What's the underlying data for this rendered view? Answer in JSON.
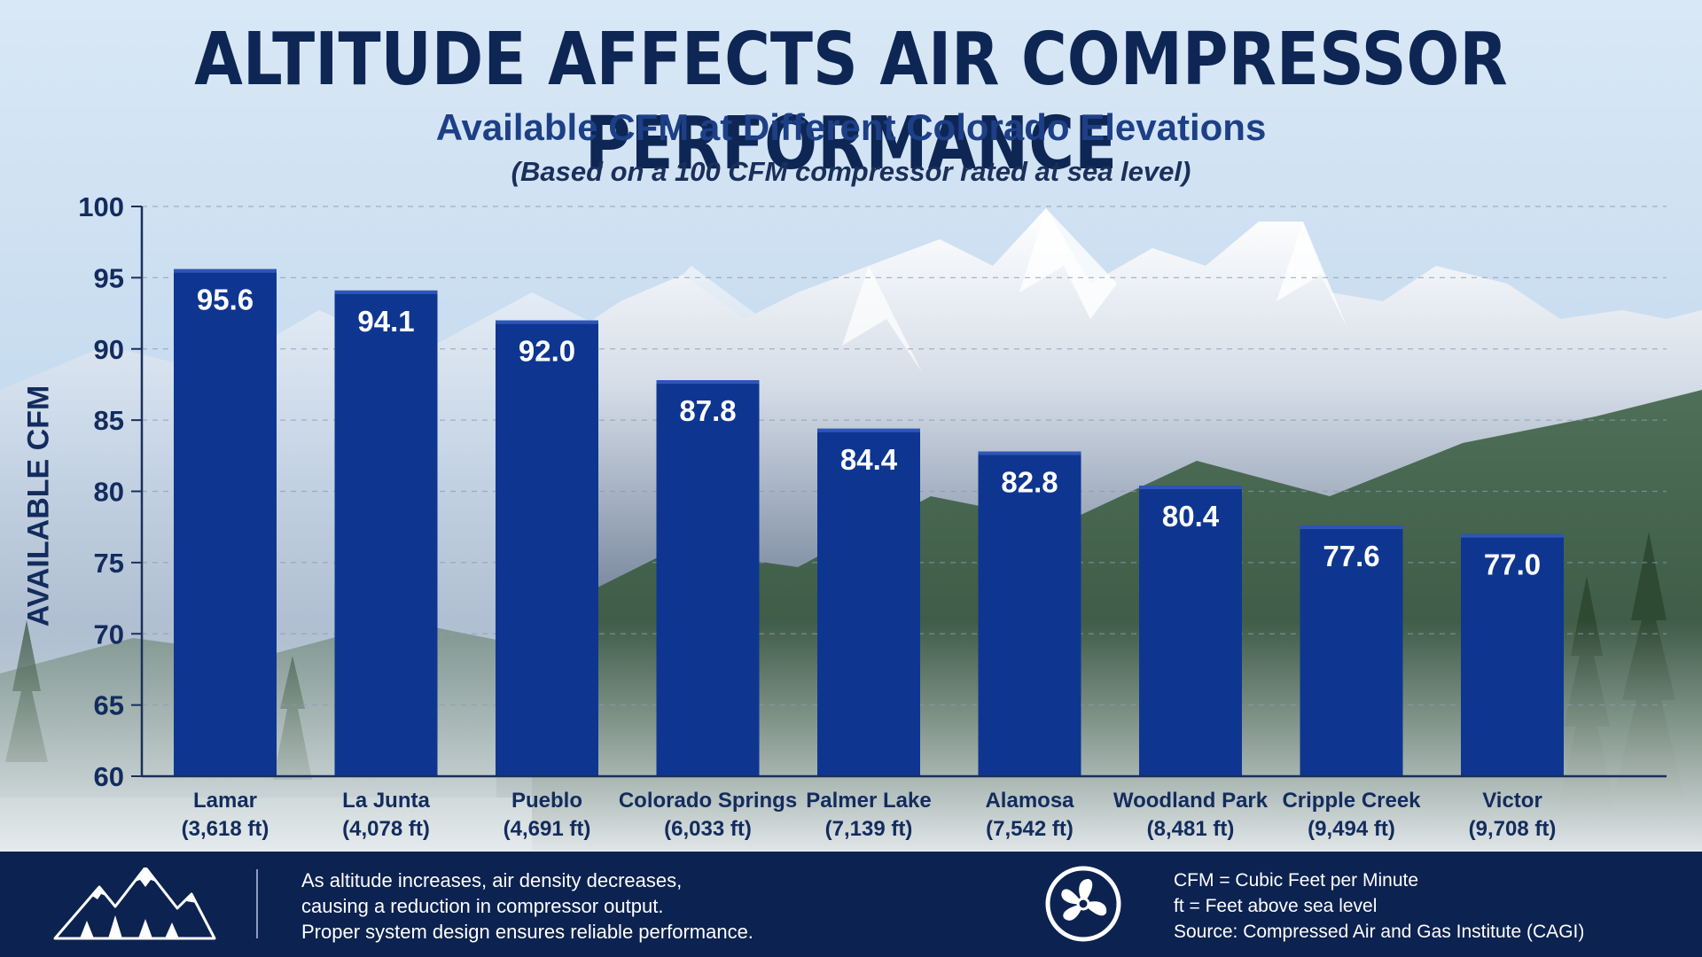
{
  "title": "ALTITUDE AFFECTS AIR COMPRESSOR PERFORMANCE",
  "subtitle": "Available CFM at Different Colorado Elevations",
  "note": "(Based on a 100 CFM compressor rated at sea level)",
  "chart_data": {
    "type": "bar",
    "ylabel": "AVAILABLE CFM",
    "xlabel": "",
    "ylim": [
      60,
      100
    ],
    "yticks": [
      60,
      65,
      70,
      75,
      80,
      85,
      90,
      95,
      100
    ],
    "grid": true,
    "categories": [
      {
        "city": "Lamar",
        "elevation": "(3,618 ft)"
      },
      {
        "city": "La Junta",
        "elevation": "(4,078 ft)"
      },
      {
        "city": "Pueblo",
        "elevation": "(4,691 ft)"
      },
      {
        "city": "Colorado Springs",
        "elevation": "(6,033 ft)"
      },
      {
        "city": "Palmer Lake",
        "elevation": "(7,139 ft)"
      },
      {
        "city": "Alamosa",
        "elevation": "(7,542 ft)"
      },
      {
        "city": "Woodland Park",
        "elevation": "(8,481 ft)"
      },
      {
        "city": "Cripple Creek",
        "elevation": "(9,494 ft)"
      },
      {
        "city": "Victor",
        "elevation": "(9,708 ft)"
      }
    ],
    "values": [
      95.6,
      94.1,
      92.0,
      87.8,
      84.4,
      82.8,
      80.4,
      77.6,
      77.0
    ],
    "value_labels": [
      "95.6",
      "94.1",
      "92.0",
      "87.8",
      "84.4",
      "82.8",
      "80.4",
      "77.6",
      "77.0"
    ],
    "bar_color": "#0e3691"
  },
  "footer": {
    "left_lines": [
      "As altitude increases, air density decreases,",
      "causing a reduction in compressor output.",
      "Proper system design ensures reliable performance."
    ],
    "right_lines": [
      "CFM = Cubic Feet per Minute",
      "ft = Feet above sea level",
      "Source: Compressed Air and Gas Institute (CAGI)"
    ],
    "left_icon": "mountain-icon",
    "right_icon": "fan-icon"
  },
  "colors": {
    "title": "#0e2654",
    "subtitle": "#1d3f86",
    "footer_bg": "#0c2250"
  }
}
